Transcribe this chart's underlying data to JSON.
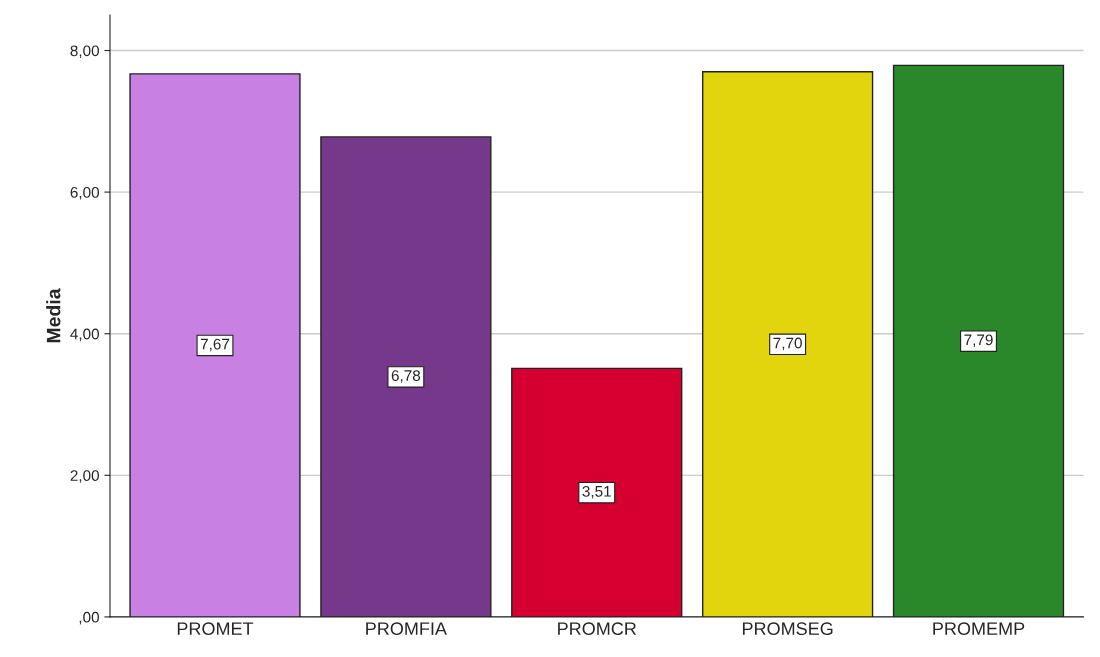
{
  "chart_data": {
    "type": "bar",
    "ylabel": "Media",
    "categories": [
      "PROMET",
      "PROMFIA",
      "PROMCR",
      "PROMSEG",
      "PROMEMP"
    ],
    "values": [
      7.67,
      6.78,
      3.51,
      7.7,
      7.79
    ],
    "colors": [
      "#c980e3",
      "#76388b",
      "#d5002f",
      "#e2d50e",
      "#2a882a"
    ],
    "value_labels": [
      "7,67",
      "6,78",
      "3,51",
      "7,70",
      "7,79"
    ],
    "ylim": [
      0,
      8.5
    ],
    "yticks": [
      {
        "value": 0,
        "label": ",00"
      },
      {
        "value": 2,
        "label": "2,00"
      },
      {
        "value": 4,
        "label": "4,00"
      },
      {
        "value": 6,
        "label": "6,00"
      },
      {
        "value": 8,
        "label": "8,00"
      }
    ],
    "grid": "y",
    "legend": false
  }
}
